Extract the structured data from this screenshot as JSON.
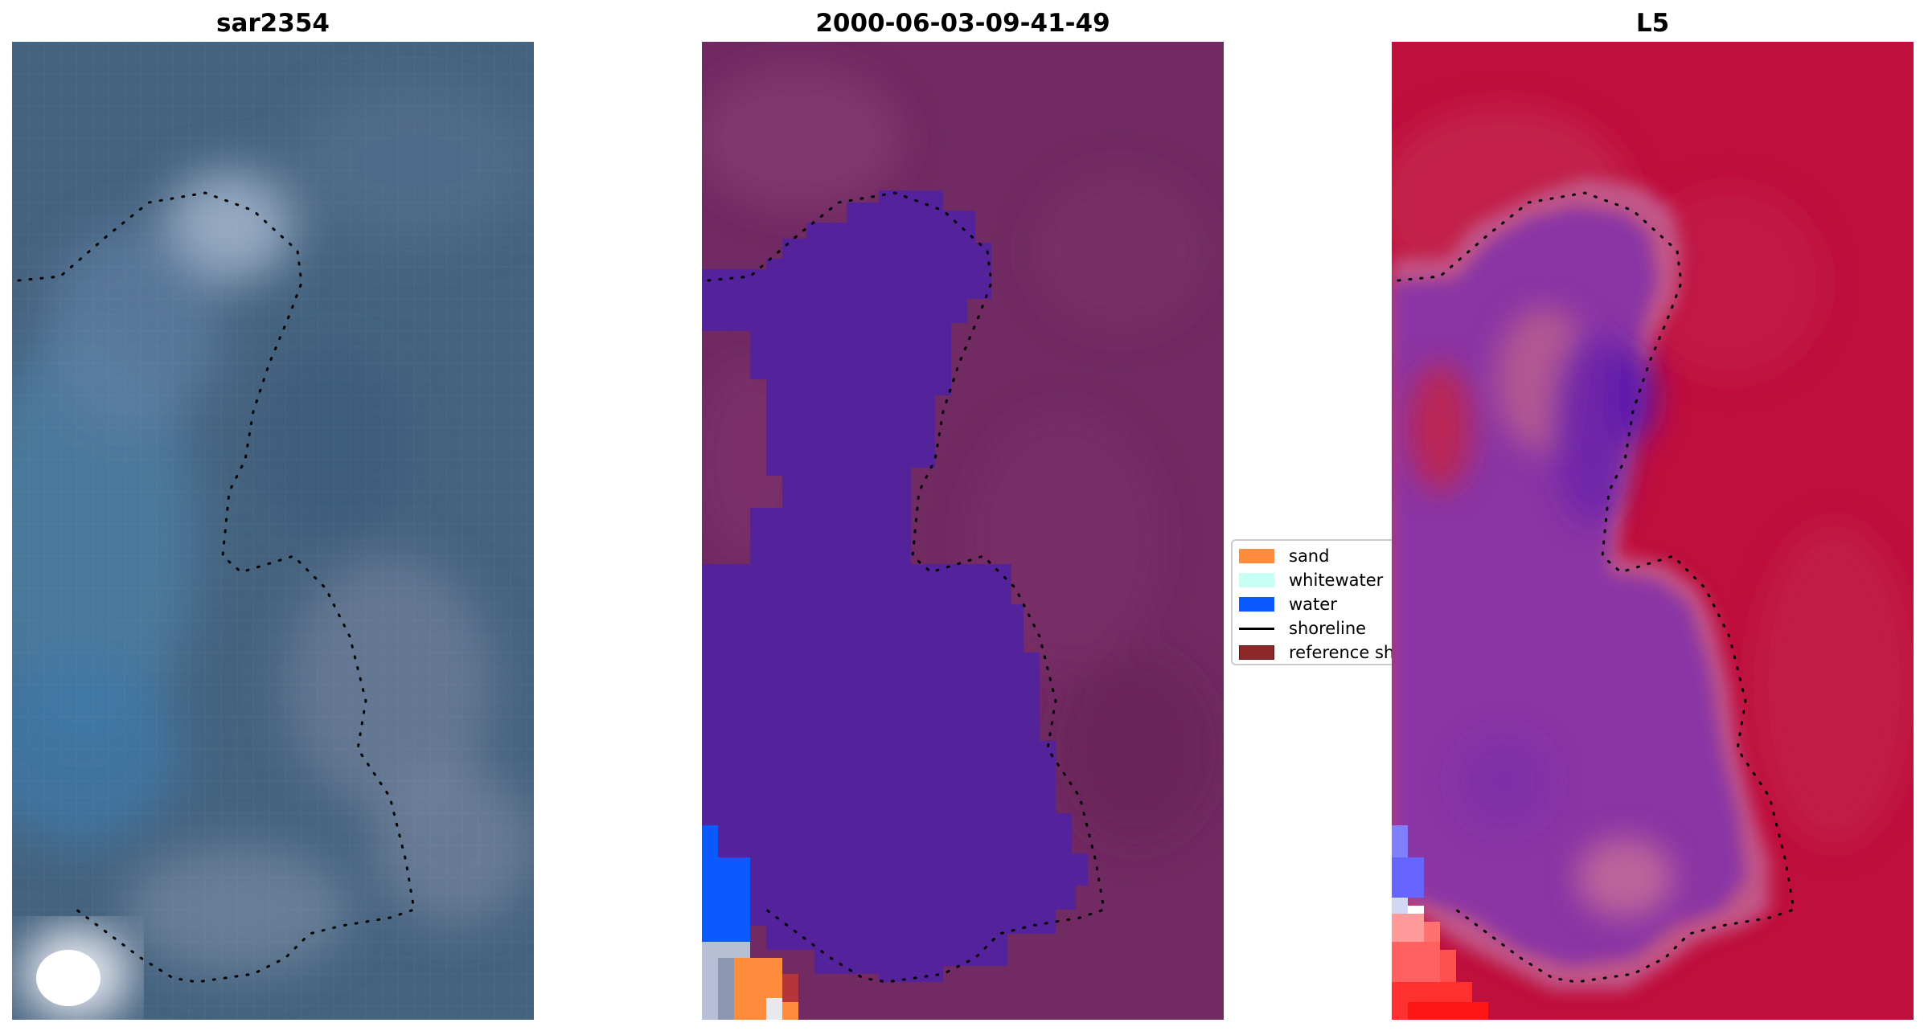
{
  "panels": [
    {
      "title": "sar2354"
    },
    {
      "title": "2000-06-03-09-41-49"
    },
    {
      "title": "L5"
    }
  ],
  "legend": {
    "items": [
      {
        "label": "sand",
        "color": "#ff8c3c",
        "kind": "patch"
      },
      {
        "label": "whitewater",
        "color": "#c8fff5",
        "kind": "patch"
      },
      {
        "label": "water",
        "color": "#0a5aff",
        "kind": "patch"
      },
      {
        "label": "shoreline",
        "color": "#000000",
        "kind": "line"
      },
      {
        "label": "reference shoreline",
        "color": "#8c2828",
        "kind": "patch"
      }
    ]
  },
  "colors": {
    "rgb_base": "#446280",
    "class_land": "#732a63",
    "class_water_body": "#54229a",
    "index_land": "#bf0f3d",
    "index_water": "#8a35a5"
  }
}
